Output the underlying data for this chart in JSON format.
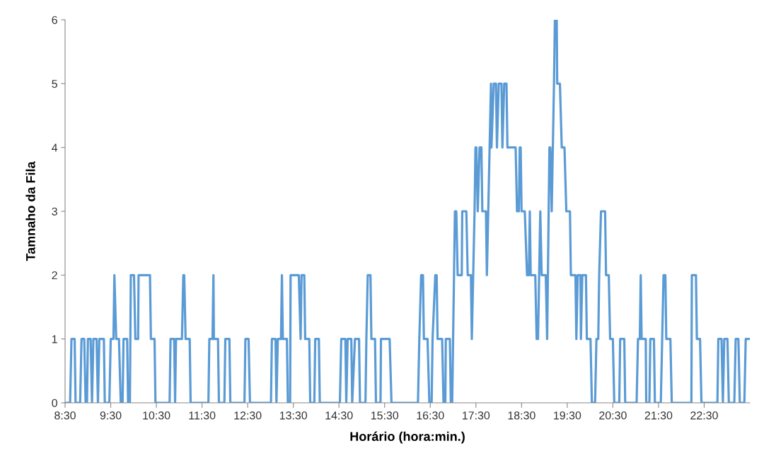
{
  "chart_data": {
    "type": "line",
    "xlabel": "Horário (hora:min.)",
    "ylabel": "Tamnaho da Fila",
    "grid": false,
    "marker": "none",
    "line_style": "solid",
    "xlim": [
      8.5,
      23.5
    ],
    "ylim": [
      0,
      6
    ],
    "yticks": [
      0,
      1,
      2,
      3,
      4,
      5,
      6
    ],
    "xticks": [
      {
        "value": 8.5,
        "label": "8:30"
      },
      {
        "value": 9.5,
        "label": "9:30"
      },
      {
        "value": 10.5,
        "label": "10:30"
      },
      {
        "value": 11.5,
        "label": "11:30"
      },
      {
        "value": 12.5,
        "label": "12:30"
      },
      {
        "value": 13.5,
        "label": "13:30"
      },
      {
        "value": 14.5,
        "label": "14:30"
      },
      {
        "value": 15.5,
        "label": "15:30"
      },
      {
        "value": 16.5,
        "label": "16:30"
      },
      {
        "value": 17.5,
        "label": "17:30"
      },
      {
        "value": 18.5,
        "label": "18:30"
      },
      {
        "value": 19.5,
        "label": "19:30"
      },
      {
        "value": 20.5,
        "label": "20:30"
      },
      {
        "value": 21.5,
        "label": "21:30"
      },
      {
        "value": 22.5,
        "label": "22:30"
      }
    ],
    "series": [
      {
        "color": "#5b9bd5",
        "x": [
          8.5,
          8.61,
          8.64,
          8.71,
          8.73,
          8.83,
          8.86,
          8.92,
          8.95,
          8.98,
          9.0,
          9.06,
          9.09,
          9.12,
          9.19,
          9.22,
          9.25,
          9.35,
          9.37,
          9.47,
          9.5,
          9.56,
          9.58,
          9.62,
          9.68,
          9.72,
          9.76,
          9.78,
          9.86,
          9.88,
          9.92,
          9.94,
          10.01,
          10.04,
          10.1,
          10.11,
          10.36,
          10.38,
          10.46,
          10.48,
          10.79,
          10.81,
          10.89,
          10.91,
          10.93,
          11.06,
          11.09,
          11.11,
          11.14,
          11.23,
          11.25,
          11.64,
          11.66,
          11.73,
          11.75,
          11.76,
          11.85,
          11.87,
          11.99,
          12.01,
          12.1,
          12.12,
          12.43,
          12.45,
          12.52,
          12.55,
          13.01,
          13.03,
          13.11,
          13.13,
          13.16,
          13.23,
          13.25,
          13.27,
          13.36,
          13.38,
          13.43,
          13.44,
          13.62,
          13.66,
          13.68,
          13.74,
          13.76,
          13.85,
          13.87,
          13.96,
          13.98,
          14.06,
          14.08,
          14.52,
          14.55,
          14.64,
          14.66,
          14.69,
          14.77,
          14.79,
          14.85,
          14.94,
          14.96,
          15.08,
          15.1,
          15.13,
          15.19,
          15.21,
          15.29,
          15.31,
          15.41,
          15.42,
          15.61,
          15.65,
          16.23,
          16.26,
          16.3,
          16.34,
          16.36,
          16.44,
          16.48,
          16.53,
          16.55,
          16.61,
          16.64,
          16.66,
          16.76,
          16.79,
          16.83,
          16.84,
          16.93,
          16.95,
          16.98,
          17.04,
          17.07,
          17.1,
          17.19,
          17.2,
          17.29,
          17.32,
          17.39,
          17.41,
          17.47,
          17.49,
          17.51,
          17.54,
          17.58,
          17.62,
          17.64,
          17.72,
          17.74,
          17.77,
          17.8,
          17.83,
          17.84,
          17.89,
          17.94,
          17.96,
          18.0,
          18.06,
          18.08,
          18.12,
          18.17,
          18.19,
          18.37,
          18.4,
          18.44,
          18.46,
          18.48,
          18.5,
          18.57,
          18.62,
          18.66,
          18.68,
          18.7,
          18.8,
          18.83,
          18.86,
          18.91,
          18.94,
          19.03,
          19.06,
          19.11,
          19.13,
          19.16,
          19.21,
          19.23,
          19.27,
          19.28,
          19.34,
          19.38,
          19.44,
          19.48,
          19.56,
          19.58,
          19.68,
          19.7,
          19.73,
          19.79,
          19.8,
          19.83,
          19.91,
          19.93,
          20.01,
          20.04,
          20.11,
          20.14,
          20.18,
          20.2,
          20.24,
          20.33,
          20.35,
          20.41,
          20.44,
          20.5,
          20.53,
          20.64,
          20.66,
          20.75,
          20.77,
          21.02,
          21.05,
          21.09,
          21.11,
          21.13,
          21.22,
          21.23,
          21.3,
          21.32,
          21.4,
          21.42,
          21.55,
          21.58,
          21.61,
          21.65,
          21.67,
          21.76,
          21.79,
          22.22,
          22.23,
          22.32,
          22.34,
          22.41,
          22.44,
          22.79,
          22.81,
          22.88,
          22.91,
          22.94,
          23.01,
          23.04,
          23.16,
          23.19,
          23.25,
          23.28,
          23.38,
          23.41,
          23.48
        ],
        "values": [
          0,
          0,
          1,
          1,
          0,
          0,
          1,
          1,
          0,
          0,
          1,
          1,
          0,
          1,
          1,
          0,
          1,
          1,
          0,
          0,
          1,
          1,
          2,
          1,
          1,
          0,
          0,
          1,
          1,
          0,
          0,
          2,
          2,
          1,
          1,
          2,
          2,
          1,
          1,
          0,
          0,
          1,
          1,
          0,
          1,
          1,
          2,
          2,
          1,
          1,
          0,
          0,
          1,
          1,
          2,
          1,
          1,
          0,
          0,
          1,
          1,
          0,
          0,
          1,
          1,
          0,
          0,
          1,
          1,
          0,
          1,
          1,
          2,
          1,
          1,
          0,
          0,
          2,
          2,
          1,
          2,
          2,
          1,
          1,
          0,
          0,
          1,
          1,
          0,
          0,
          1,
          1,
          0,
          1,
          1,
          0,
          1,
          1,
          0,
          0,
          1,
          2,
          2,
          1,
          1,
          0,
          0,
          1,
          1,
          0,
          0,
          1,
          2,
          2,
          1,
          1,
          0,
          0,
          1,
          2,
          2,
          1,
          1,
          0,
          0,
          1,
          1,
          0,
          0,
          3,
          3,
          2,
          2,
          3,
          3,
          2,
          2,
          1,
          3,
          4,
          4,
          3,
          4,
          4,
          3,
          3,
          2,
          3,
          4,
          5,
          4,
          5,
          5,
          4,
          5,
          5,
          4,
          5,
          5,
          4,
          4,
          3,
          3,
          4,
          4,
          3,
          3,
          2,
          2,
          3,
          2,
          2,
          1,
          1,
          3,
          2,
          2,
          1,
          4,
          4,
          3,
          5,
          6,
          6,
          5,
          5,
          4,
          4,
          3,
          3,
          2,
          2,
          1,
          2,
          2,
          1,
          2,
          2,
          1,
          1,
          0,
          0,
          1,
          1,
          2,
          3,
          3,
          2,
          2,
          1,
          1,
          0,
          0,
          1,
          1,
          0,
          0,
          1,
          1,
          2,
          1,
          1,
          0,
          0,
          1,
          1,
          0,
          0,
          1,
          2,
          2,
          1,
          1,
          0,
          0,
          2,
          2,
          1,
          1,
          0,
          0,
          1,
          1,
          0,
          1,
          1,
          0,
          0,
          1,
          1,
          0,
          0,
          1,
          1
        ]
      }
    ]
  }
}
